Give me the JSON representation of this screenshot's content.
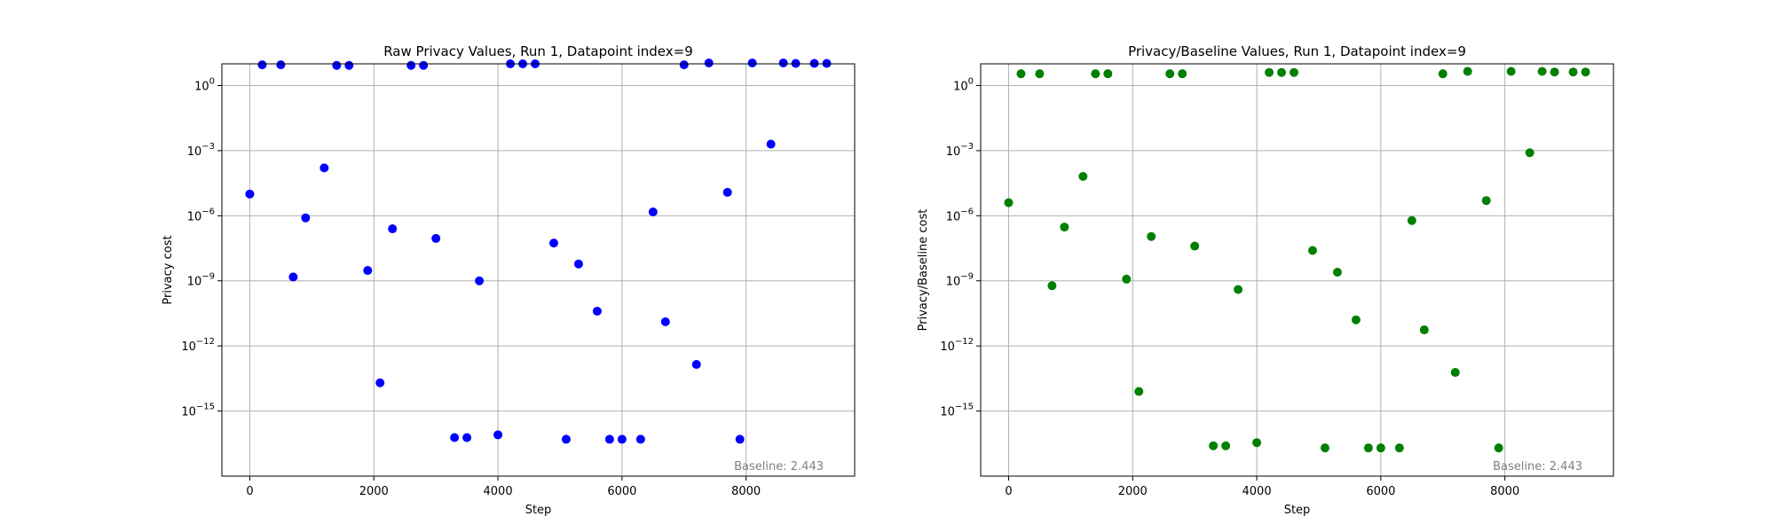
{
  "chart_data": [
    {
      "type": "scatter",
      "title": "Raw Privacy Values, Run 1, Datapoint index=9",
      "xlabel": "Step",
      "ylabel": "Privacy cost",
      "yscale": "log",
      "xlim": [
        -450,
        9750
      ],
      "ylim": [
        1e-18,
        10
      ],
      "xticks": [
        0,
        2000,
        4000,
        6000,
        8000
      ],
      "xtick_labels": [
        "0",
        "2000",
        "4000",
        "6000",
        "8000"
      ],
      "yticks": [
        1e-15,
        1e-12,
        1e-09,
        1e-06,
        0.001,
        1
      ],
      "ytick_labels": [
        {
          "base": "10",
          "exp": "−15"
        },
        {
          "base": "10",
          "exp": "−12"
        },
        {
          "base": "10",
          "exp": "−9"
        },
        {
          "base": "10",
          "exp": "−6"
        },
        {
          "base": "10",
          "exp": "−3"
        },
        {
          "base": "10",
          "exp": "0"
        }
      ],
      "grid": true,
      "color": "#0000ff",
      "annotation": "Baseline: 2.443",
      "points": [
        {
          "x": 0,
          "y": 1e-05
        },
        {
          "x": 200,
          "y": 9.0
        },
        {
          "x": 500,
          "y": 9.0
        },
        {
          "x": 700,
          "y": 1.5e-09
        },
        {
          "x": 900,
          "y": 8e-07
        },
        {
          "x": 1200,
          "y": 0.00016
        },
        {
          "x": 1400,
          "y": 8.5
        },
        {
          "x": 1600,
          "y": 8.5
        },
        {
          "x": 1900,
          "y": 3e-09
        },
        {
          "x": 2100,
          "y": 2e-14
        },
        {
          "x": 2300,
          "y": 2.5e-07
        },
        {
          "x": 2600,
          "y": 8.5
        },
        {
          "x": 2800,
          "y": 8.5
        },
        {
          "x": 3000,
          "y": 9e-08
        },
        {
          "x": 3300,
          "y": 6e-17
        },
        {
          "x": 3500,
          "y": 6e-17
        },
        {
          "x": 3700,
          "y": 1e-09
        },
        {
          "x": 4000,
          "y": 8e-17
        },
        {
          "x": 4200,
          "y": 10.0
        },
        {
          "x": 4400,
          "y": 10.0
        },
        {
          "x": 4600,
          "y": 10.0
        },
        {
          "x": 4900,
          "y": 5.5e-08
        },
        {
          "x": 5100,
          "y": 5e-17
        },
        {
          "x": 5300,
          "y": 6e-09
        },
        {
          "x": 5600,
          "y": 4e-11
        },
        {
          "x": 5800,
          "y": 5e-17
        },
        {
          "x": 6000,
          "y": 5e-17
        },
        {
          "x": 6300,
          "y": 5e-17
        },
        {
          "x": 6500,
          "y": 1.5e-06
        },
        {
          "x": 6700,
          "y": 1.3e-11
        },
        {
          "x": 7000,
          "y": 9.0
        },
        {
          "x": 7200,
          "y": 1.4e-13
        },
        {
          "x": 7400,
          "y": 11.0
        },
        {
          "x": 7700,
          "y": 1.2e-05
        },
        {
          "x": 7900,
          "y": 5e-17
        },
        {
          "x": 8100,
          "y": 11.0
        },
        {
          "x": 8400,
          "y": 0.002
        },
        {
          "x": 8600,
          "y": 11.0
        },
        {
          "x": 8800,
          "y": 10.5
        },
        {
          "x": 9100,
          "y": 10.5
        },
        {
          "x": 9300,
          "y": 10.5
        }
      ]
    },
    {
      "type": "scatter",
      "title": "Privacy/Baseline Values, Run 1, Datapoint index=9",
      "xlabel": "Step",
      "ylabel": "Privacy/Baseline cost",
      "yscale": "log",
      "xlim": [
        -450,
        9750
      ],
      "ylim": [
        1e-18,
        10
      ],
      "xticks": [
        0,
        2000,
        4000,
        6000,
        8000
      ],
      "xtick_labels": [
        "0",
        "2000",
        "4000",
        "6000",
        "8000"
      ],
      "yticks": [
        1e-15,
        1e-12,
        1e-09,
        1e-06,
        0.001,
        1
      ],
      "ytick_labels": [
        {
          "base": "10",
          "exp": "−15"
        },
        {
          "base": "10",
          "exp": "−12"
        },
        {
          "base": "10",
          "exp": "−9"
        },
        {
          "base": "10",
          "exp": "−6"
        },
        {
          "base": "10",
          "exp": "−3"
        },
        {
          "base": "10",
          "exp": "0"
        }
      ],
      "grid": true,
      "color": "#008000",
      "annotation": "Baseline: 2.443",
      "points": [
        {
          "x": 0,
          "y": 4e-06
        },
        {
          "x": 200,
          "y": 3.5
        },
        {
          "x": 500,
          "y": 3.5
        },
        {
          "x": 700,
          "y": 6e-10
        },
        {
          "x": 900,
          "y": 3e-07
        },
        {
          "x": 1200,
          "y": 6.5e-05
        },
        {
          "x": 1400,
          "y": 3.5
        },
        {
          "x": 1600,
          "y": 3.5
        },
        {
          "x": 1900,
          "y": 1.2e-09
        },
        {
          "x": 2100,
          "y": 8e-15
        },
        {
          "x": 2300,
          "y": 1.1e-07
        },
        {
          "x": 2600,
          "y": 3.5
        },
        {
          "x": 2800,
          "y": 3.5
        },
        {
          "x": 3000,
          "y": 4e-08
        },
        {
          "x": 3300,
          "y": 2.5e-17
        },
        {
          "x": 3500,
          "y": 2.5e-17
        },
        {
          "x": 3700,
          "y": 4e-10
        },
        {
          "x": 4000,
          "y": 3.5e-17
        },
        {
          "x": 4200,
          "y": 4.0
        },
        {
          "x": 4400,
          "y": 4.0
        },
        {
          "x": 4600,
          "y": 4.0
        },
        {
          "x": 4900,
          "y": 2.5e-08
        },
        {
          "x": 5100,
          "y": 2e-17
        },
        {
          "x": 5300,
          "y": 2.5e-09
        },
        {
          "x": 5600,
          "y": 1.6e-11
        },
        {
          "x": 5800,
          "y": 2e-17
        },
        {
          "x": 6000,
          "y": 2e-17
        },
        {
          "x": 6300,
          "y": 2e-17
        },
        {
          "x": 6500,
          "y": 6e-07
        },
        {
          "x": 6700,
          "y": 5.5e-12
        },
        {
          "x": 7000,
          "y": 3.5
        },
        {
          "x": 7200,
          "y": 6e-14
        },
        {
          "x": 7400,
          "y": 4.5
        },
        {
          "x": 7700,
          "y": 5e-06
        },
        {
          "x": 7900,
          "y": 2e-17
        },
        {
          "x": 8100,
          "y": 4.5
        },
        {
          "x": 8400,
          "y": 0.0008
        },
        {
          "x": 8600,
          "y": 4.5
        },
        {
          "x": 8800,
          "y": 4.2
        },
        {
          "x": 9100,
          "y": 4.2
        },
        {
          "x": 9300,
          "y": 4.2
        }
      ]
    }
  ]
}
